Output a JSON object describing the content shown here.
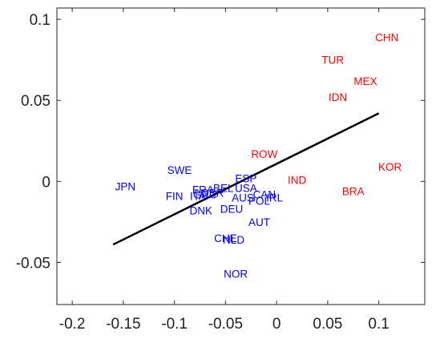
{
  "chart_data": {
    "type": "scatter",
    "title": "",
    "xlabel": "",
    "ylabel": "",
    "xlim": [
      -0.215,
      0.145
    ],
    "ylim": [
      -0.076,
      0.107
    ],
    "x_ticks": [
      -0.2,
      -0.15,
      -0.1,
      -0.05,
      0,
      0.05,
      0.1
    ],
    "x_tick_labels": [
      "-0.2",
      "-0.15",
      "-0.1",
      "-0.05",
      "0",
      "0.05",
      "0.1"
    ],
    "y_ticks": [
      -0.05,
      0,
      0.05,
      0.1
    ],
    "y_tick_labels": [
      "-0.05",
      "0",
      "0.05",
      "0.1"
    ],
    "grid": false,
    "colors": {
      "series_a": "#ff0000",
      "series_b": "#0000ff",
      "fit_line": "#000000"
    },
    "fit_line": {
      "x": [
        -0.16,
        0.1
      ],
      "y": [
        -0.039,
        0.042
      ]
    },
    "series": [
      {
        "color_key": "series_a",
        "points": [
          {
            "label": "CHN",
            "x": 0.108,
            "y": 0.089
          },
          {
            "label": "TUR",
            "x": 0.055,
            "y": 0.075
          },
          {
            "label": "MEX",
            "x": 0.087,
            "y": 0.062
          },
          {
            "label": "IDN",
            "x": 0.06,
            "y": 0.052
          },
          {
            "label": "ROW",
            "x": -0.012,
            "y": 0.017
          },
          {
            "label": "KOR",
            "x": 0.111,
            "y": 0.009
          },
          {
            "label": "IND",
            "x": 0.02,
            "y": 0.001
          },
          {
            "label": "BRA",
            "x": 0.075,
            "y": -0.006
          }
        ]
      },
      {
        "color_key": "series_b",
        "points": [
          {
            "label": "SWE",
            "x": -0.095,
            "y": 0.007
          },
          {
            "label": "ESP",
            "x": -0.03,
            "y": 0.002
          },
          {
            "label": "JPN",
            "x": -0.148,
            "y": -0.003
          },
          {
            "label": "FRA",
            "x": -0.072,
            "y": -0.005
          },
          {
            "label": "GBR",
            "x": -0.063,
            "y": -0.007
          },
          {
            "label": "BEL",
            "x": -0.052,
            "y": -0.004
          },
          {
            "label": "USA",
            "x": -0.03,
            "y": -0.004
          },
          {
            "label": "FIN",
            "x": -0.1,
            "y": -0.009
          },
          {
            "label": "ITA",
            "x": -0.077,
            "y": -0.009
          },
          {
            "label": "GRC",
            "x": -0.07,
            "y": -0.008
          },
          {
            "label": "AUS",
            "x": -0.033,
            "y": -0.01
          },
          {
            "label": "CAN",
            "x": -0.012,
            "y": -0.008
          },
          {
            "label": "POL",
            "x": -0.017,
            "y": -0.012
          },
          {
            "label": "IRL",
            "x": -0.002,
            "y": -0.01
          },
          {
            "label": "DEU",
            "x": -0.044,
            "y": -0.017
          },
          {
            "label": "DNK",
            "x": -0.074,
            "y": -0.018
          },
          {
            "label": "AUT",
            "x": -0.017,
            "y": -0.025
          },
          {
            "label": "CHE",
            "x": -0.05,
            "y": -0.035
          },
          {
            "label": "NLD",
            "x": -0.042,
            "y": -0.036
          },
          {
            "label": "NOR",
            "x": -0.04,
            "y": -0.057
          }
        ]
      }
    ]
  }
}
